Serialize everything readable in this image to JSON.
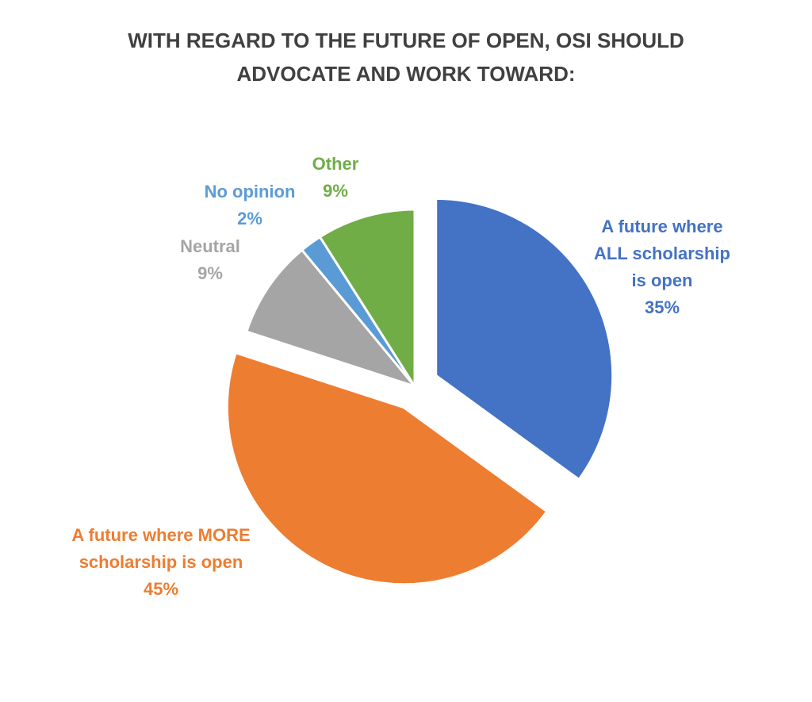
{
  "chart_data": {
    "type": "pie",
    "title": "WITH REGARD TO THE FUTURE OF OPEN, OSI SHOULD ADVOCATE AND WORK TOWARD:",
    "title_lines": [
      "WITH REGARD TO THE FUTURE OF OPEN, OSI SHOULD",
      "ADVOCATE AND WORK TOWARD:"
    ],
    "legend": "none",
    "slices": [
      {
        "label": "A future where ALL scholarship is open",
        "label_lines": [
          "A future where",
          "ALL scholarship",
          "is open"
        ],
        "value": 35,
        "value_label": "35%",
        "color": "#4472C4",
        "exploded": true
      },
      {
        "label": "A future where MORE scholarship is open",
        "label_lines": [
          "A future where MORE",
          "scholarship is open"
        ],
        "value": 45,
        "value_label": "45%",
        "color": "#ED7D31",
        "exploded": true
      },
      {
        "label": "Neutral",
        "label_lines": [
          "Neutral"
        ],
        "value": 9,
        "value_label": "9%",
        "color": "#A5A5A5",
        "exploded": false
      },
      {
        "label": "No opinion",
        "label_lines": [
          "No opinion"
        ],
        "value": 2,
        "value_label": "2%",
        "color": "#5B9BD5",
        "exploded": false
      },
      {
        "label": "Other",
        "label_lines": [
          "Other"
        ],
        "value": 9,
        "value_label": "9%",
        "color": "#70AD47",
        "exploded": false
      }
    ]
  }
}
